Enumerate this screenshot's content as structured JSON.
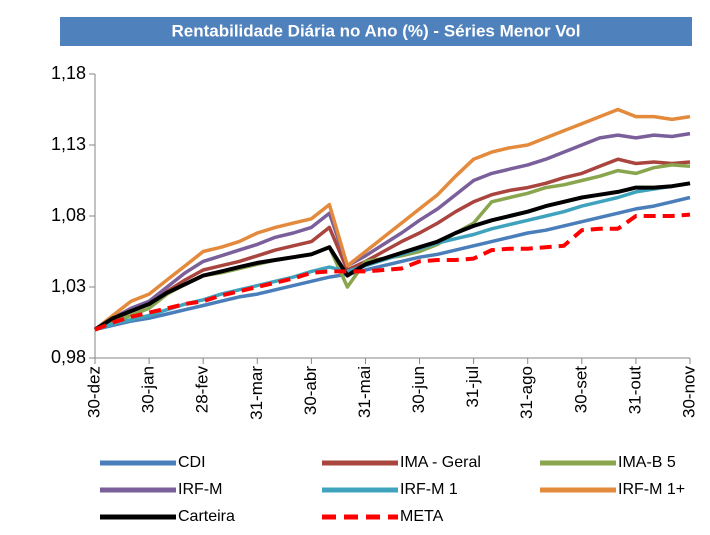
{
  "chart_data": {
    "type": "line",
    "title": "Rentabilidade Diária no Ano (%) - Séries Menor Vol",
    "categories": [
      "30-dez",
      null,
      null,
      "30-jan",
      null,
      null,
      "28-fev",
      null,
      null,
      "31-mar",
      null,
      null,
      "30-abr",
      null,
      null,
      "31-mai",
      null,
      null,
      "30-jun",
      null,
      null,
      "31-jul",
      null,
      null,
      "31-ago",
      null,
      null,
      "30-set",
      null,
      null,
      "31-out",
      null,
      null,
      "30-nov"
    ],
    "ylim": [
      0.98,
      1.18
    ],
    "yticks": [
      {
        "value": 0.98,
        "label": "0,98"
      },
      {
        "value": 1.03,
        "label": "1,03"
      },
      {
        "value": 1.08,
        "label": "1,08"
      },
      {
        "value": 1.13,
        "label": "1,13"
      },
      {
        "value": 1.18,
        "label": "1,18"
      }
    ],
    "series": [
      {
        "name": "CDI",
        "color": "#4a7ebb",
        "values": [
          1.0,
          1.003,
          1.006,
          1.008,
          1.011,
          1.014,
          1.017,
          1.02,
          1.023,
          1.025,
          1.028,
          1.031,
          1.034,
          1.037,
          1.039,
          1.042,
          1.045,
          1.048,
          1.051,
          1.053,
          1.056,
          1.059,
          1.062,
          1.065,
          1.068,
          1.07,
          1.073,
          1.076,
          1.079,
          1.082,
          1.085,
          1.087,
          1.09,
          1.093
        ]
      },
      {
        "name": "IMA - Geral",
        "color": "#a9443f",
        "values": [
          1.0,
          1.007,
          1.013,
          1.018,
          1.027,
          1.035,
          1.042,
          1.045,
          1.048,
          1.052,
          1.056,
          1.059,
          1.062,
          1.072,
          1.042,
          1.048,
          1.055,
          1.062,
          1.068,
          1.075,
          1.083,
          1.09,
          1.095,
          1.098,
          1.1,
          1.103,
          1.107,
          1.11,
          1.115,
          1.12,
          1.117,
          1.118,
          1.117,
          1.118
        ]
      },
      {
        "name": "IMA-B 5",
        "color": "#89a54e",
        "values": [
          1.0,
          1.005,
          1.01,
          1.015,
          1.025,
          1.032,
          1.038,
          1.04,
          1.043,
          1.046,
          1.049,
          1.051,
          1.053,
          1.058,
          1.03,
          1.048,
          1.05,
          1.052,
          1.055,
          1.06,
          1.068,
          1.075,
          1.09,
          1.093,
          1.096,
          1.1,
          1.102,
          1.105,
          1.108,
          1.112,
          1.11,
          1.114,
          1.116,
          1.115
        ]
      },
      {
        "name": "IRF-M",
        "color": "#7a5f9a",
        "values": [
          1.0,
          1.008,
          1.015,
          1.02,
          1.03,
          1.04,
          1.048,
          1.052,
          1.056,
          1.06,
          1.065,
          1.068,
          1.072,
          1.082,
          1.045,
          1.052,
          1.06,
          1.068,
          1.077,
          1.085,
          1.095,
          1.105,
          1.11,
          1.113,
          1.116,
          1.12,
          1.125,
          1.13,
          1.135,
          1.137,
          1.135,
          1.137,
          1.136,
          1.138
        ]
      },
      {
        "name": "IRF-M 1",
        "color": "#3fa3be",
        "values": [
          1.0,
          1.004,
          1.007,
          1.01,
          1.014,
          1.018,
          1.021,
          1.025,
          1.028,
          1.031,
          1.034,
          1.037,
          1.041,
          1.044,
          1.041,
          1.045,
          1.049,
          1.053,
          1.057,
          1.061,
          1.064,
          1.067,
          1.071,
          1.074,
          1.077,
          1.08,
          1.083,
          1.087,
          1.09,
          1.093,
          1.097,
          1.099,
          1.101,
          1.103
        ]
      },
      {
        "name": "IRF-M 1+",
        "color": "#e48a3c",
        "values": [
          1.0,
          1.01,
          1.02,
          1.025,
          1.035,
          1.045,
          1.055,
          1.058,
          1.062,
          1.068,
          1.072,
          1.075,
          1.078,
          1.088,
          1.045,
          1.055,
          1.065,
          1.075,
          1.085,
          1.095,
          1.108,
          1.12,
          1.125,
          1.128,
          1.13,
          1.135,
          1.14,
          1.145,
          1.15,
          1.155,
          1.15,
          1.15,
          1.148,
          1.15
        ]
      },
      {
        "name": "Carteira",
        "color": "#000000",
        "values": [
          1.0,
          1.008,
          1.013,
          1.018,
          1.026,
          1.032,
          1.038,
          1.041,
          1.044,
          1.047,
          1.049,
          1.051,
          1.053,
          1.058,
          1.038,
          1.046,
          1.05,
          1.054,
          1.058,
          1.062,
          1.068,
          1.073,
          1.077,
          1.08,
          1.083,
          1.087,
          1.09,
          1.093,
          1.095,
          1.097,
          1.1,
          1.1,
          1.101,
          1.103
        ]
      },
      {
        "name": "META",
        "color": "#ff0000",
        "line_style": "dashed",
        "values": [
          1.0,
          1.005,
          1.009,
          1.012,
          1.015,
          1.018,
          1.02,
          1.024,
          1.027,
          1.03,
          1.033,
          1.036,
          1.04,
          1.041,
          1.041,
          1.041,
          1.042,
          1.043,
          1.048,
          1.049,
          1.049,
          1.05,
          1.056,
          1.057,
          1.057,
          1.058,
          1.059,
          1.07,
          1.071,
          1.071,
          1.08,
          1.08,
          1.08,
          1.081
        ]
      }
    ]
  }
}
